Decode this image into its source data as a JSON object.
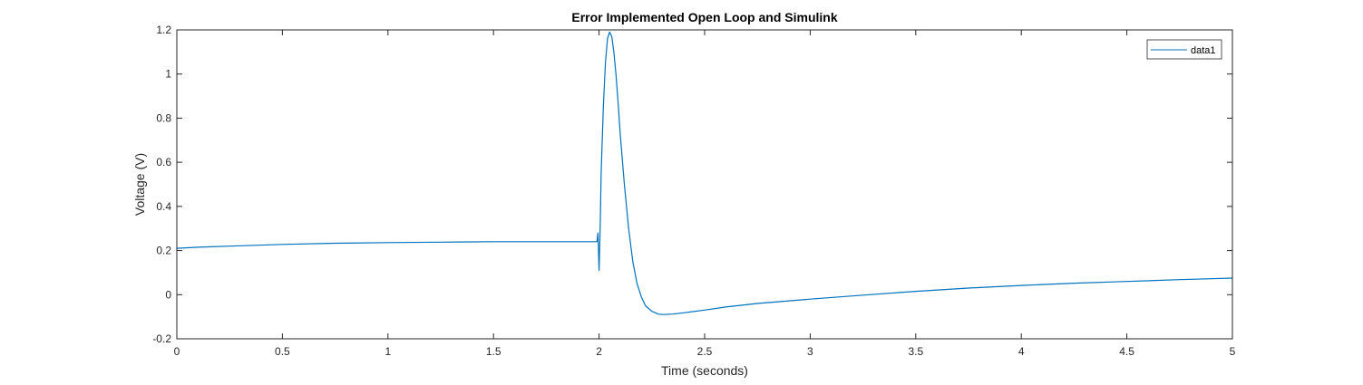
{
  "chart_data": {
    "type": "line",
    "title": "Error Implemented Open Loop and Simulink",
    "xlabel": "Time (seconds)",
    "ylabel": "Voltage (V)",
    "xlim": [
      0,
      5
    ],
    "ylim": [
      -0.2,
      1.2
    ],
    "xticks": [
      0,
      0.5,
      1,
      1.5,
      2,
      2.5,
      3,
      3.5,
      4,
      4.5,
      5
    ],
    "yticks": [
      -0.2,
      0,
      0.2,
      0.4,
      0.6,
      0.8,
      1,
      1.2
    ],
    "xtick_labels": [
      "0",
      "0.5",
      "1",
      "1.5",
      "2",
      "2.5",
      "3",
      "3.5",
      "4",
      "4.5",
      "5"
    ],
    "ytick_labels": [
      "-0.2",
      "0",
      "0.2",
      "0.4",
      "0.6",
      "0.8",
      "1",
      "1.2"
    ],
    "grid": false,
    "legend": {
      "position": "top-right",
      "entries": [
        "data1"
      ]
    },
    "series": [
      {
        "name": "data1",
        "color": "#0072BD",
        "x": [
          0,
          0.1,
          0.25,
          0.5,
          0.75,
          1.0,
          1.25,
          1.5,
          1.75,
          1.99,
          1.995,
          2.0,
          2.005,
          2.01,
          2.02,
          2.03,
          2.04,
          2.05,
          2.06,
          2.07,
          2.08,
          2.09,
          2.1,
          2.12,
          2.14,
          2.16,
          2.18,
          2.2,
          2.22,
          2.25,
          2.28,
          2.3,
          2.35,
          2.4,
          2.5,
          2.6,
          2.75,
          3.0,
          3.25,
          3.5,
          3.75,
          4.0,
          4.25,
          4.5,
          4.75,
          5.0
        ],
        "y": [
          0.21,
          0.215,
          0.22,
          0.228,
          0.233,
          0.236,
          0.238,
          0.24,
          0.24,
          0.24,
          0.28,
          0.11,
          0.3,
          0.55,
          0.85,
          1.05,
          1.16,
          1.19,
          1.17,
          1.1,
          1.0,
          0.87,
          0.73,
          0.5,
          0.3,
          0.15,
          0.05,
          -0.01,
          -0.05,
          -0.075,
          -0.088,
          -0.09,
          -0.088,
          -0.082,
          -0.07,
          -0.056,
          -0.04,
          -0.02,
          -0.002,
          0.015,
          0.03,
          0.042,
          0.052,
          0.06,
          0.068,
          0.075
        ]
      }
    ]
  }
}
